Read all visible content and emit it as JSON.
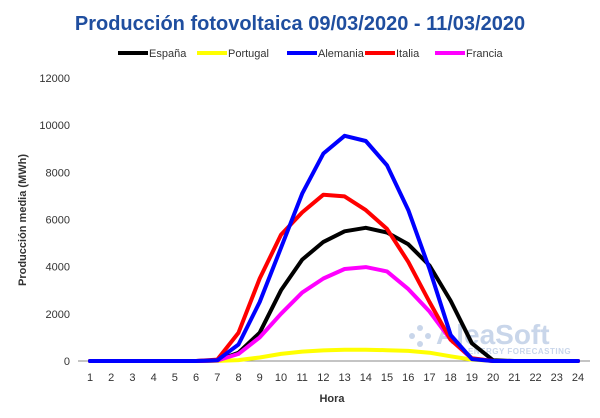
{
  "chart_data": {
    "type": "line",
    "title": "Producción fotovoltaica 09/03/2020 - 11/03/2020",
    "xlabel": "Hora",
    "ylabel": "Producción media (MWh)",
    "x": [
      1,
      2,
      3,
      4,
      5,
      6,
      7,
      8,
      9,
      10,
      11,
      12,
      13,
      14,
      15,
      16,
      17,
      18,
      19,
      20,
      21,
      22,
      23,
      24
    ],
    "ylim": [
      0,
      12000
    ],
    "yticks": [
      0,
      2000,
      4000,
      6000,
      8000,
      10000,
      12000
    ],
    "grid": false,
    "legend_position": "top",
    "series": [
      {
        "name": "España",
        "color": "#000000",
        "values": [
          0,
          0,
          0,
          0,
          0,
          0,
          20,
          350,
          1200,
          3000,
          4300,
          5050,
          5500,
          5650,
          5450,
          4950,
          4050,
          2550,
          750,
          30,
          0,
          0,
          0,
          0
        ]
      },
      {
        "name": "Portugal",
        "color": "#ffff00",
        "values": [
          0,
          0,
          0,
          0,
          0,
          0,
          5,
          40,
          150,
          300,
          400,
          450,
          480,
          480,
          460,
          430,
          350,
          200,
          60,
          5,
          0,
          0,
          0,
          0
        ]
      },
      {
        "name": "Alemania",
        "color": "#0000ff",
        "values": [
          0,
          0,
          0,
          0,
          0,
          0,
          30,
          700,
          2500,
          4800,
          7100,
          8800,
          9550,
          9330,
          8300,
          6400,
          3900,
          1100,
          80,
          0,
          0,
          0,
          0,
          0
        ]
      },
      {
        "name": "Italia",
        "color": "#ff0000",
        "values": [
          0,
          0,
          0,
          0,
          0,
          0,
          60,
          1200,
          3500,
          5350,
          6300,
          7050,
          6980,
          6400,
          5600,
          4200,
          2500,
          900,
          120,
          0,
          0,
          0,
          0,
          0
        ]
      },
      {
        "name": "Francia",
        "color": "#ff00ff",
        "values": [
          0,
          0,
          0,
          0,
          0,
          0,
          20,
          300,
          1000,
          2000,
          2900,
          3500,
          3900,
          3980,
          3800,
          3050,
          2100,
          900,
          100,
          0,
          0,
          0,
          0,
          0
        ]
      }
    ]
  },
  "watermark": {
    "brand": "AleaSoft",
    "tagline": "ENERGY FORECASTING",
    "color": "#c9d6ea"
  }
}
